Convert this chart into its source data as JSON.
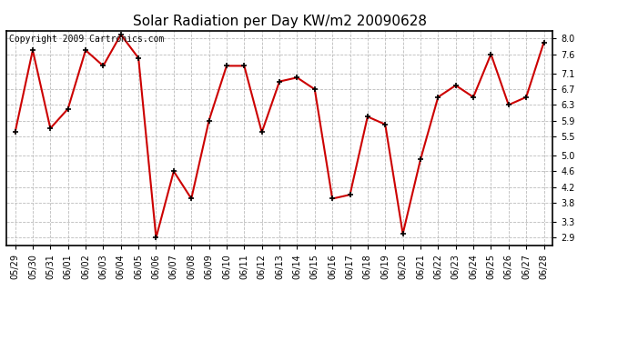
{
  "title": "Solar Radiation per Day KW/m2 20090628",
  "copyright_text": "Copyright 2009 Cartronics.com",
  "dates": [
    "05/29",
    "05/30",
    "05/31",
    "06/01",
    "06/02",
    "06/03",
    "06/04",
    "06/05",
    "06/06",
    "06/07",
    "06/08",
    "06/09",
    "06/10",
    "06/11",
    "06/12",
    "06/13",
    "06/14",
    "06/15",
    "06/16",
    "06/17",
    "06/18",
    "06/19",
    "06/20",
    "06/21",
    "06/22",
    "06/23",
    "06/24",
    "06/25",
    "06/26",
    "06/27",
    "06/28"
  ],
  "values": [
    5.6,
    7.7,
    5.7,
    6.2,
    7.7,
    7.3,
    8.1,
    7.5,
    2.9,
    4.6,
    3.9,
    5.9,
    7.3,
    7.3,
    5.6,
    6.9,
    7.0,
    6.7,
    3.9,
    4.0,
    6.0,
    5.8,
    3.0,
    4.9,
    6.5,
    6.8,
    6.5,
    7.6,
    6.3,
    6.5,
    7.9
  ],
  "ylim": [
    2.7,
    8.2
  ],
  "yticks": [
    2.9,
    3.3,
    3.8,
    4.2,
    4.6,
    5.0,
    5.5,
    5.9,
    6.3,
    6.7,
    7.1,
    7.6,
    8.0
  ],
  "line_color": "#cc0000",
  "marker": "+",
  "marker_color": "#000000",
  "marker_size": 5,
  "line_width": 1.5,
  "bg_color": "#ffffff",
  "plot_bg_color": "#ffffff",
  "grid_color": "#bbbbbb",
  "title_fontsize": 11,
  "tick_fontsize": 7,
  "copyright_fontsize": 7
}
